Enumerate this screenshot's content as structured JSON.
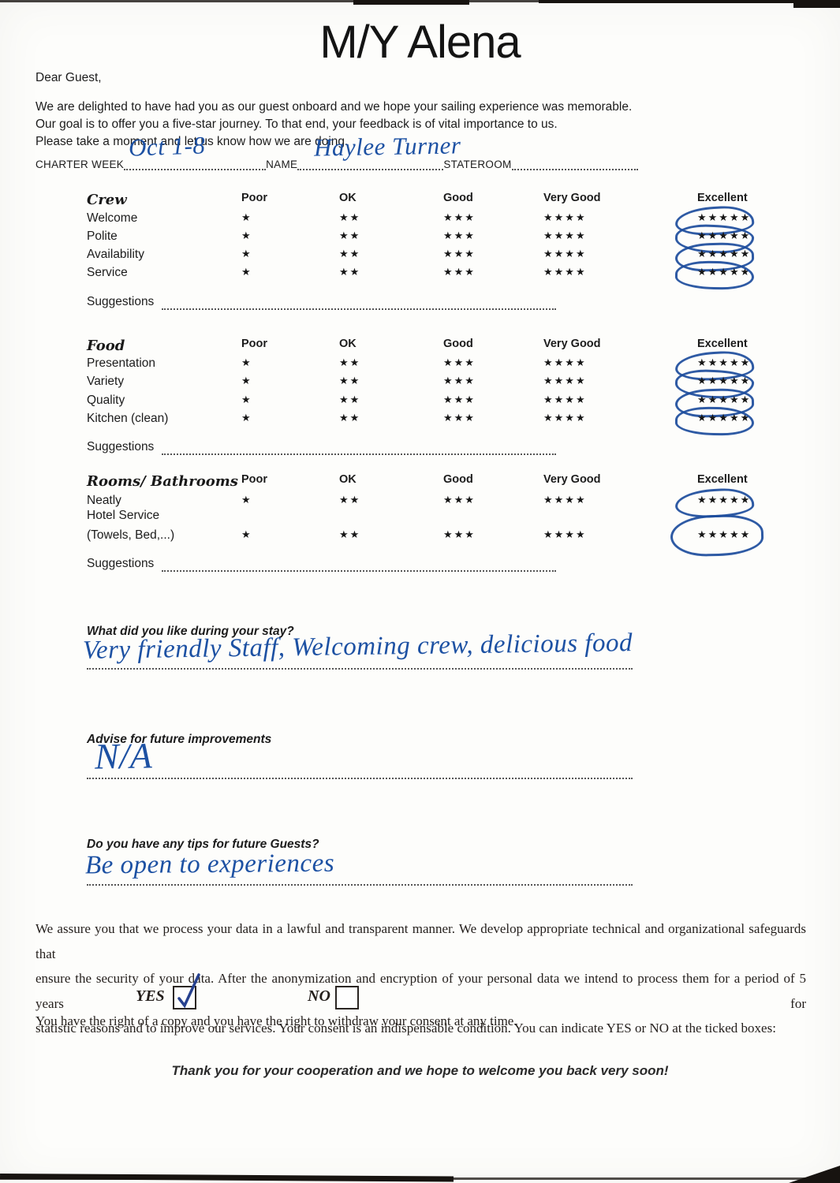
{
  "header": {
    "title": "M/Y Alena",
    "salutation": "Dear Guest,",
    "intro_lines": [
      "We are delighted to have had you as our guest onboard and we hope your sailing experience was memorable.",
      "Our goal is to offer you a five-star journey. To that end, your feedback is of vital importance to us.",
      "Please take a moment and let us know how we are doing."
    ]
  },
  "fields": {
    "charter_week_label": "CHARTER WEEK",
    "charter_week_value": "Oct 1-8",
    "name_label": "NAME",
    "name_value": "Haylee Turner",
    "stateroom_label": "STATEROOM",
    "stateroom_value": ""
  },
  "rating_scale": [
    "Poor",
    "OK",
    "Good",
    "Very Good",
    "Excellent"
  ],
  "sections": [
    {
      "title": "Crew",
      "rows": [
        {
          "label": "Welcome",
          "rating": "Excellent"
        },
        {
          "label": "Polite",
          "rating": "Excellent"
        },
        {
          "label": "Availability",
          "rating": "Excellent"
        },
        {
          "label": "Service",
          "rating": "Excellent"
        }
      ],
      "suggestions_label": "Suggestions",
      "suggestions_value": ""
    },
    {
      "title": "Food",
      "rows": [
        {
          "label": "Presentation",
          "rating": "Excellent"
        },
        {
          "label": "Variety",
          "rating": "Excellent"
        },
        {
          "label": "Quality",
          "rating": "Excellent"
        },
        {
          "label": "Kitchen (clean)",
          "rating": "Excellent"
        }
      ],
      "suggestions_label": "Suggestions",
      "suggestions_value": ""
    },
    {
      "title": "Rooms/ Bathrooms",
      "rows": [
        {
          "label": "Neatly",
          "rating": "Excellent"
        },
        {
          "label": "Hotel Service",
          "rating": null,
          "label_only": true
        },
        {
          "label": "(Towels, Bed,...)",
          "rating": "Excellent"
        }
      ],
      "suggestions_label": "Suggestions",
      "suggestions_value": ""
    }
  ],
  "questions": [
    {
      "label": "What did you like during your stay?",
      "answer": "Very friendly Staff, Welcoming crew, delicious food"
    },
    {
      "label": "Advise for future improvements",
      "answer": "N/A"
    },
    {
      "label": "Do you have any tips for future Guests?",
      "answer": "Be open to experiences"
    }
  ],
  "privacy": {
    "lines": [
      "We assure you that we process your data in a lawful and transparent manner. We develop appropriate technical and organizational safeguards that",
      "ensure the security of your data. After the anonymization and encryption of your personal data we intend to process them for a period of 5 years for",
      "statistic reasons and to improve our services. Your consent is an indispensable condition. You can indicate YES or NO at the ticked boxes:"
    ],
    "yes_label": "YES",
    "no_label": "NO",
    "consent": "YES",
    "rights_text": "You have the right of a copy and you have the right to withdraw your consent at any time."
  },
  "footer": {
    "thanks": "Thank you for your cooperation and we hope to welcome you back very soon!"
  },
  "colors": {
    "ink_blue": "#1d51a3",
    "star_black": "#161616",
    "paper": "#fdfdfb"
  }
}
